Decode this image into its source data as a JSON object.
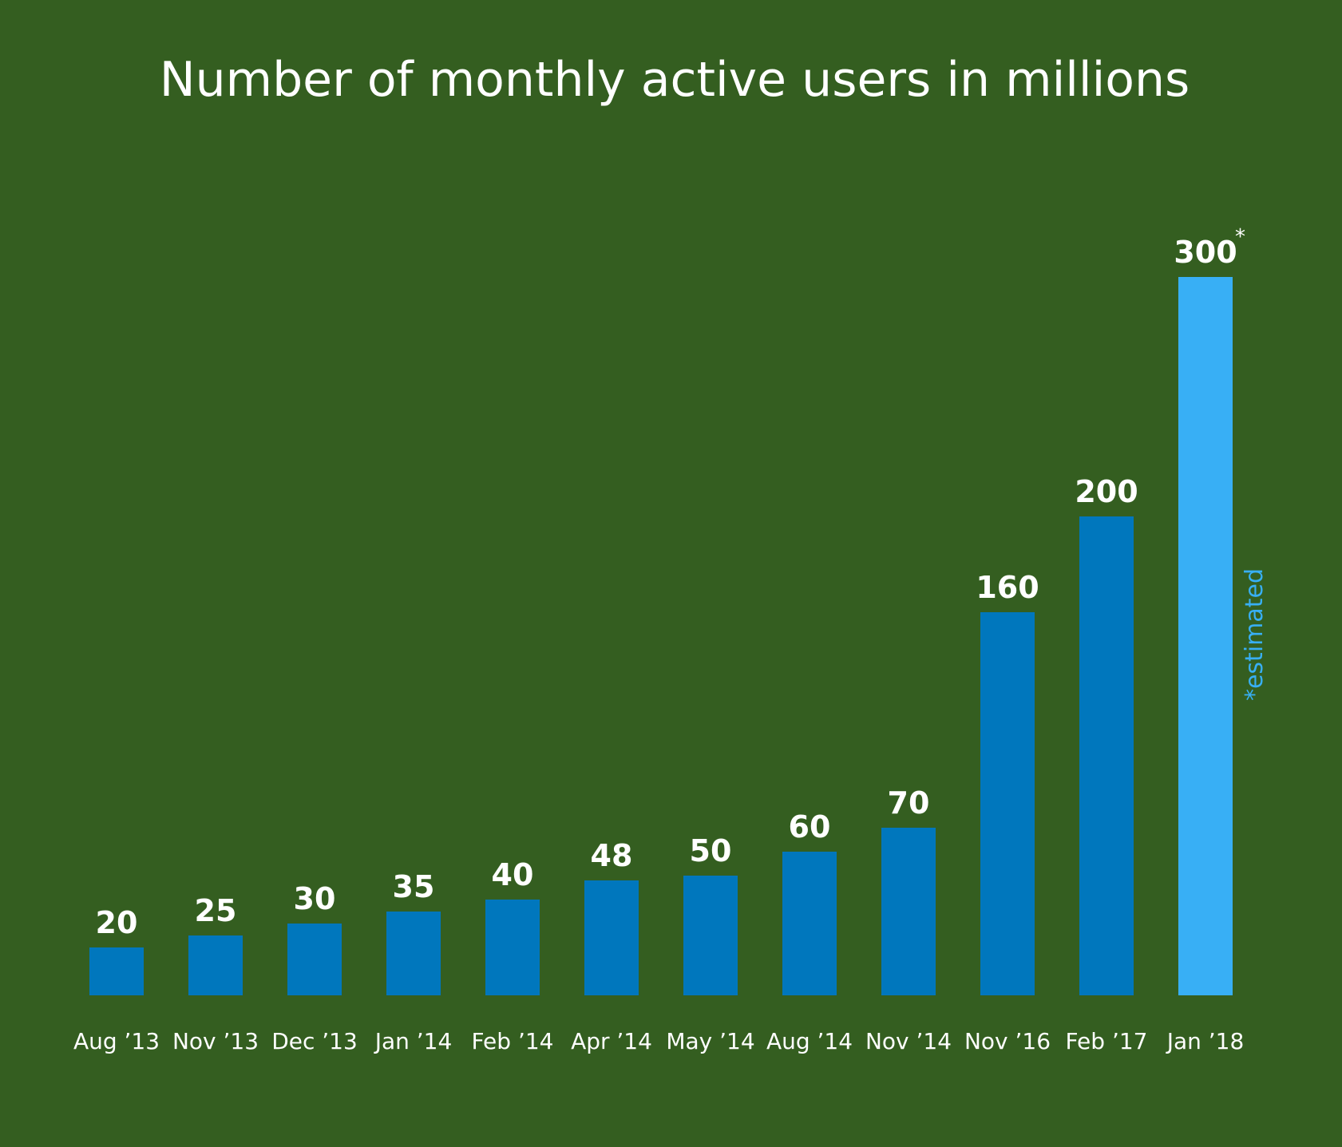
{
  "colors": {
    "background": "#345e20",
    "bar": "#0077bd",
    "bar_estimated": "#38aff5",
    "text": "#ffffff",
    "note": "#38aff5"
  },
  "chart_data": {
    "type": "bar",
    "title": "Number of monthly active users in millions",
    "xlabel": "",
    "ylabel": "",
    "ylim": [
      0,
      300
    ],
    "grid": false,
    "legend": "none",
    "categories": [
      "Aug ’13",
      "Nov ’13",
      "Dec ’13",
      "Jan ’14",
      "Feb ’14",
      "Apr ’14",
      "May ’14",
      "Aug ’14",
      "Nov ’14",
      "Nov ’16",
      "Feb ’17",
      "Jan ’18"
    ],
    "values": [
      20,
      25,
      30,
      35,
      40,
      48,
      50,
      60,
      70,
      160,
      200,
      300
    ],
    "value_labels": [
      "20",
      "25",
      "30",
      "35",
      "40",
      "48",
      "50",
      "60",
      "70",
      "160",
      "200",
      "300"
    ],
    "estimated": [
      false,
      false,
      false,
      false,
      false,
      false,
      false,
      false,
      false,
      false,
      false,
      true
    ],
    "estimated_marker": "*",
    "note": "*estimated"
  }
}
